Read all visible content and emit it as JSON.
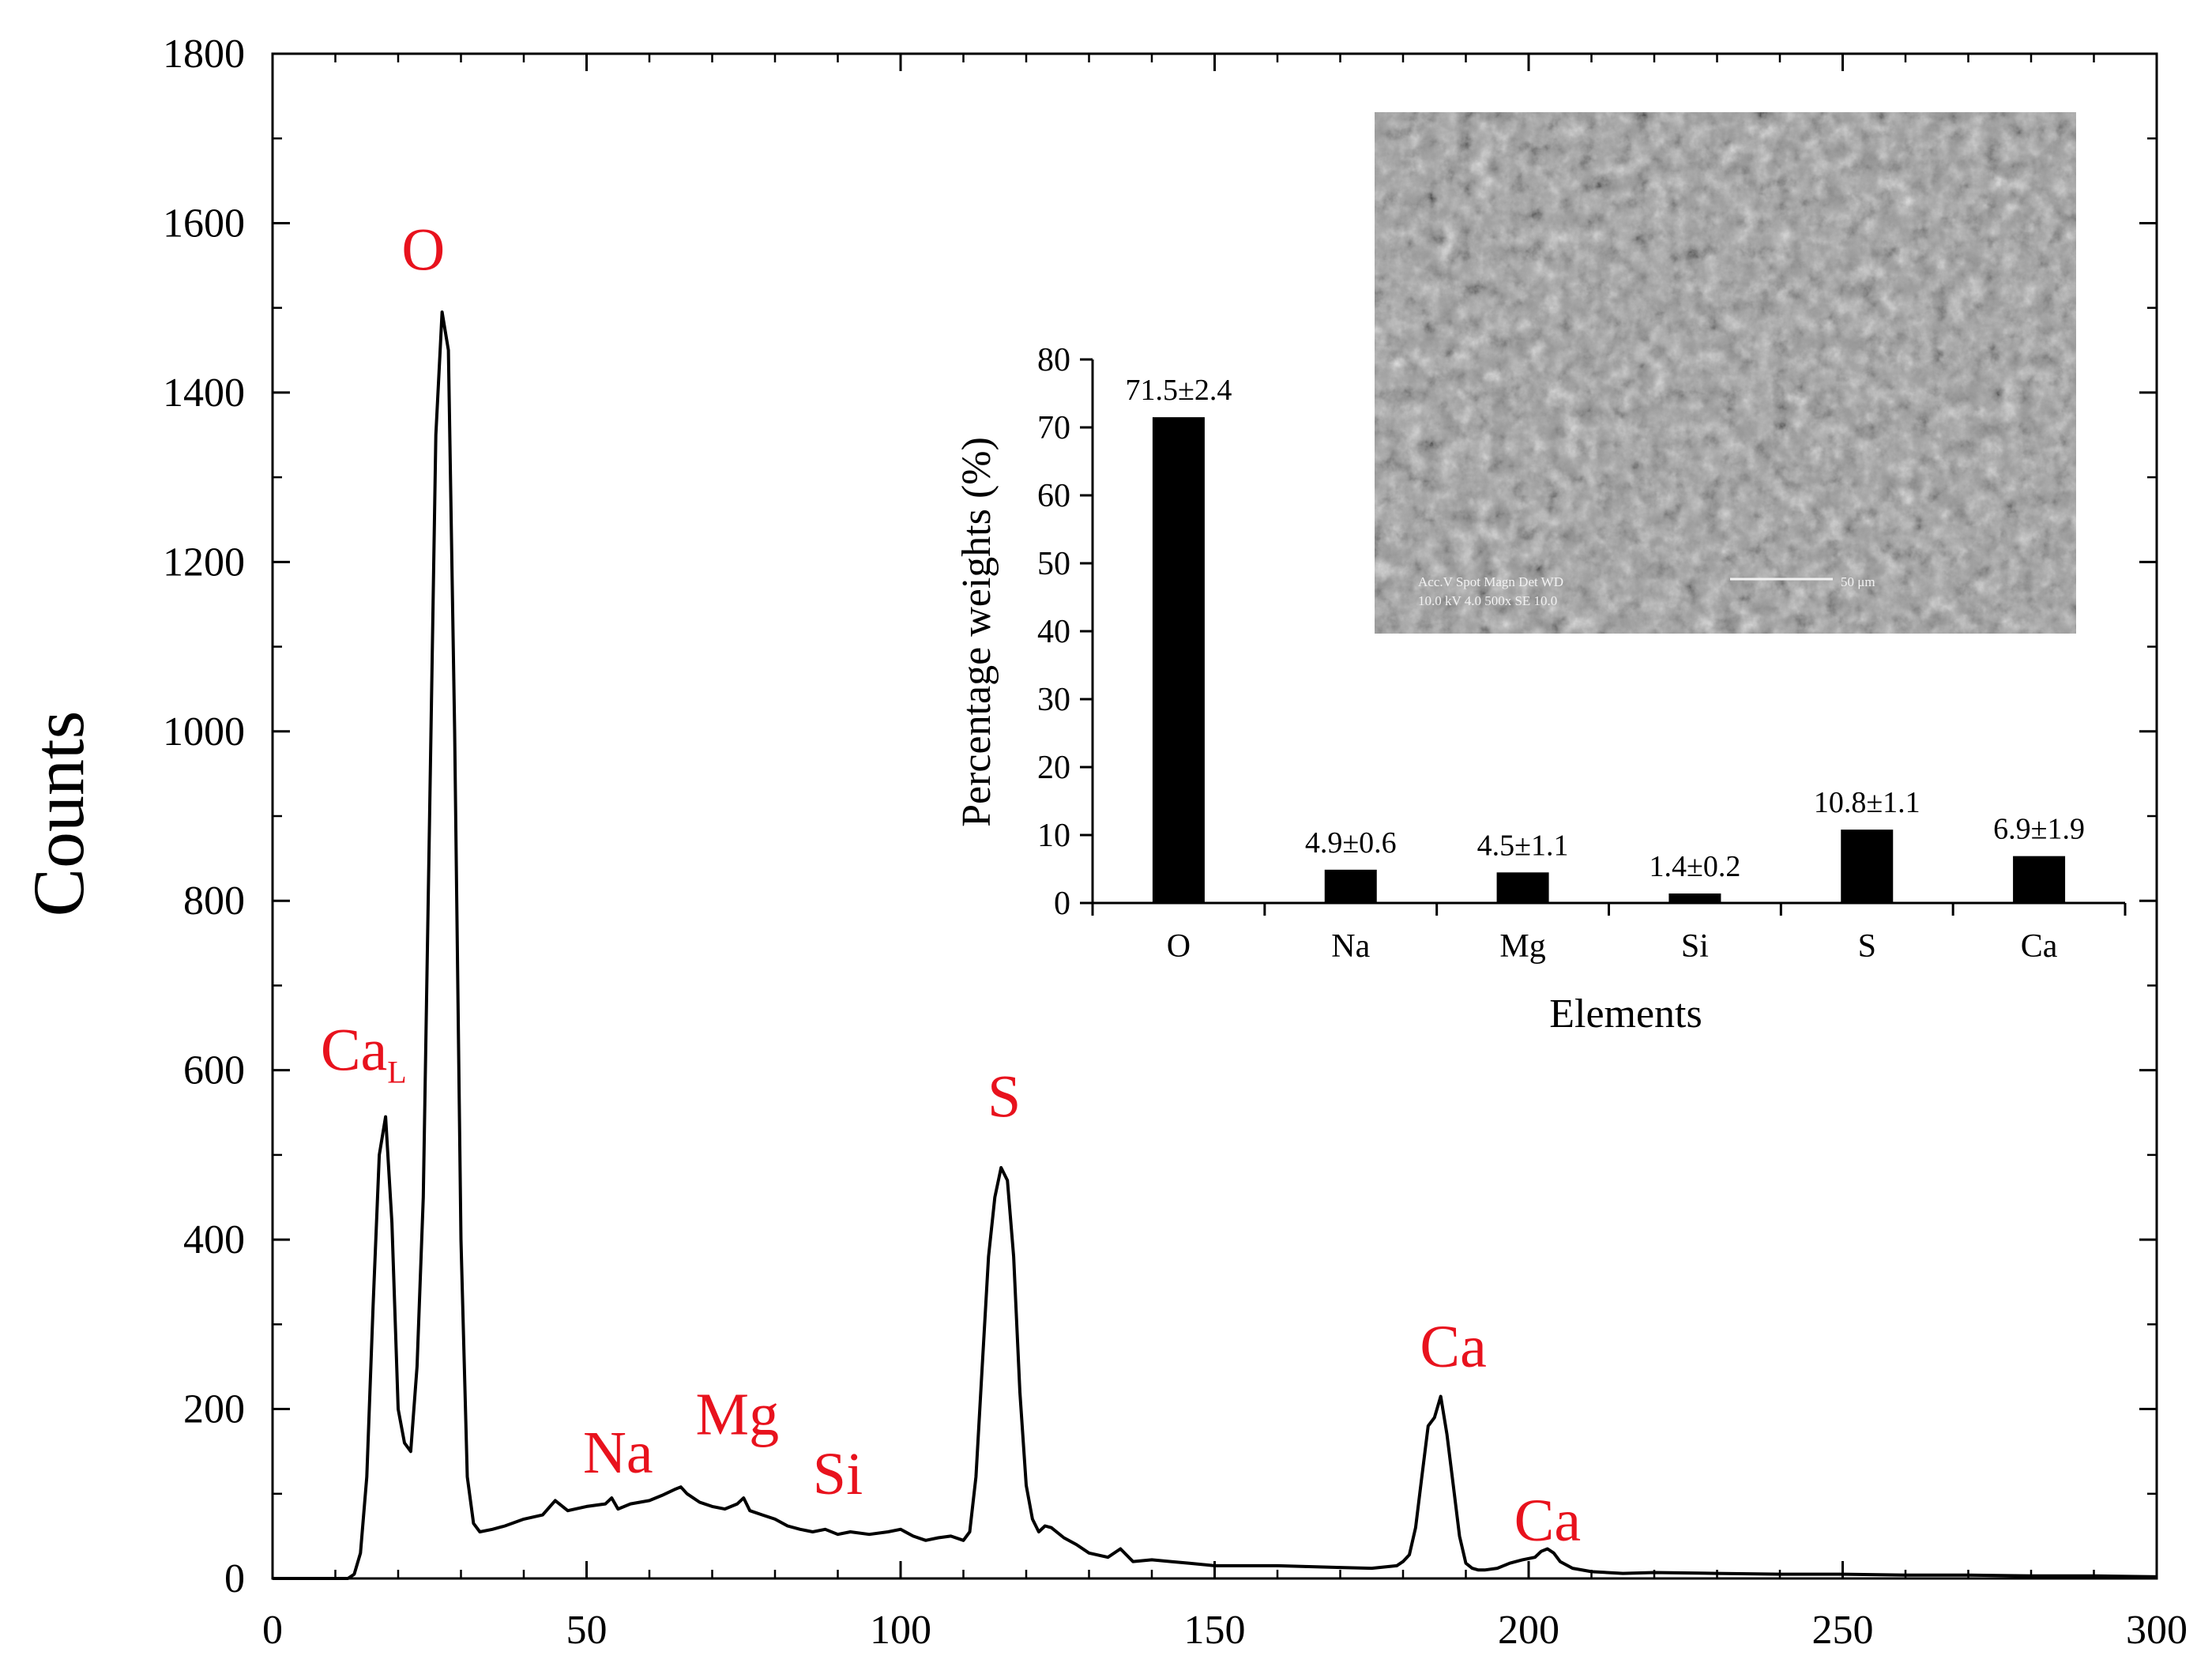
{
  "chart_data": [
    {
      "type": "line",
      "title": "",
      "xlabel": "",
      "ylabel": "Counts",
      "xlim": [
        0,
        300
      ],
      "ylim": [
        0,
        1800
      ],
      "xticks": [
        0,
        50,
        100,
        150,
        200,
        250,
        300
      ],
      "yticks": [
        0,
        200,
        400,
        600,
        800,
        1000,
        1200,
        1400,
        1600,
        1800
      ],
      "grid": false,
      "legend": "none",
      "line_color": "#000000",
      "series": [
        {
          "x": [
            0,
            12,
            13,
            14,
            15,
            16,
            17,
            18,
            19,
            20,
            21,
            22,
            23,
            24,
            25,
            26,
            27,
            28,
            29,
            30,
            31,
            32,
            33,
            35,
            37,
            40,
            43,
            45,
            47,
            50,
            53,
            54,
            55,
            57,
            60,
            62,
            64,
            65,
            66,
            68,
            70,
            72,
            74,
            75,
            76,
            78,
            80,
            82,
            84,
            86,
            88,
            90,
            92,
            95,
            98,
            100,
            102,
            104,
            106,
            108,
            110,
            111,
            112,
            113,
            114,
            115,
            116,
            117,
            118,
            119,
            120,
            121,
            122,
            123,
            124,
            126,
            128,
            130,
            133,
            135,
            137,
            140,
            143,
            146,
            150,
            155,
            160,
            165,
            170,
            175,
            179,
            180,
            181,
            182,
            183,
            184,
            185,
            186,
            187,
            188,
            189,
            190,
            191,
            192,
            193,
            195,
            197,
            199,
            201,
            202,
            203,
            204,
            205,
            207,
            210,
            215,
            220,
            230,
            240,
            250,
            260,
            270,
            280,
            290,
            300
          ],
          "y": [
            0,
            0,
            5,
            30,
            120,
            320,
            500,
            545,
            420,
            200,
            160,
            150,
            250,
            450,
            900,
            1350,
            1495,
            1450,
            1000,
            400,
            120,
            65,
            55,
            58,
            62,
            70,
            75,
            92,
            80,
            85,
            88,
            95,
            82,
            88,
            92,
            98,
            105,
            108,
            100,
            90,
            85,
            82,
            88,
            95,
            80,
            75,
            70,
            62,
            58,
            55,
            58,
            52,
            55,
            52,
            55,
            58,
            50,
            45,
            48,
            50,
            45,
            55,
            120,
            250,
            380,
            450,
            485,
            470,
            380,
            220,
            110,
            70,
            55,
            62,
            60,
            48,
            40,
            30,
            25,
            35,
            20,
            22,
            20,
            18,
            15,
            15,
            15,
            14,
            13,
            12,
            15,
            20,
            28,
            60,
            120,
            180,
            190,
            215,
            170,
            110,
            50,
            18,
            12,
            10,
            10,
            12,
            18,
            22,
            25,
            32,
            35,
            30,
            20,
            12,
            8,
            6,
            7,
            6,
            5,
            5,
            4,
            4,
            3,
            3,
            2
          ]
        }
      ],
      "annotations": [
        {
          "text": "Ca",
          "sub": "L",
          "x": 14.5,
          "y": 600
        },
        {
          "text": "O",
          "x": 24,
          "y": 1545
        },
        {
          "text": "Na",
          "x": 55,
          "y": 125
        },
        {
          "text": "Mg",
          "x": 74,
          "y": 170
        },
        {
          "text": "Si",
          "x": 90,
          "y": 100
        },
        {
          "text": "S",
          "x": 116.5,
          "y": 545
        },
        {
          "text": "Ca",
          "x": 188,
          "y": 250
        },
        {
          "text": "Ca",
          "x": 203,
          "y": 45
        }
      ]
    },
    {
      "type": "bar",
      "title": "",
      "xlabel": "Elements",
      "ylabel": "Percentage  weights  (%)",
      "ylim": [
        0,
        80
      ],
      "yticks": [
        0,
        10,
        20,
        30,
        40,
        50,
        60,
        70,
        80
      ],
      "categories": [
        "O",
        "Na",
        "Mg",
        "Si",
        "S",
        "Ca"
      ],
      "values": [
        71.5,
        4.9,
        4.5,
        1.4,
        10.8,
        6.9
      ],
      "data_labels": [
        "71.5±2.4",
        "4.9±0.6",
        "4.5±1.1",
        "1.4±0.2",
        "10.8±1.1",
        "6.9±1.9"
      ],
      "bar_color": "#000000",
      "grid": false,
      "legend": "none"
    }
  ],
  "micrograph": {
    "alt": "SEM micrograph",
    "bg_color": "#9a9a9a",
    "info_lines": [
      "Acc.V  Spot Magn    Det  WD",
      "10.0 kV 4.0  500x    SE   10.0"
    ],
    "scale_label": "50 μm"
  }
}
